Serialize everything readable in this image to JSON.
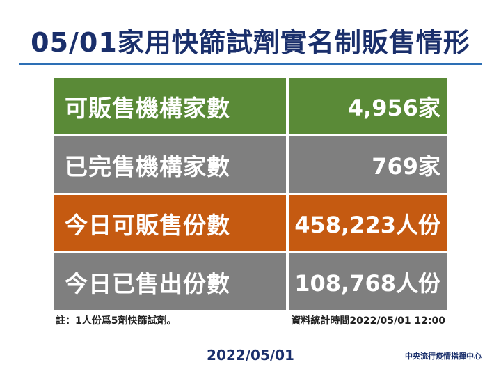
{
  "title": "05/01家用快篩試劑實名制販售情形",
  "rows": [
    {
      "label": "可販售機構家數",
      "value": "4,956家",
      "color": "#5a8a37"
    },
    {
      "label": "已完售機構家數",
      "value": "769家",
      "color": "#7f7f7f"
    },
    {
      "label": "今日可販售份數",
      "value": "458,223人份",
      "color": "#c55a11"
    },
    {
      "label": "今日已售出份數",
      "value": "108,768人份",
      "color": "#7f7f7f"
    }
  ],
  "notes": {
    "left": "註：1人份爲5劑快篩試劑。",
    "right": "資料統計時間2022/05/01  12:00"
  },
  "footer": {
    "date": "2022/05/01",
    "organization": "中央流行疫情指揮中心"
  },
  "colors": {
    "title": "#1a2f6b",
    "rule": "#2d6fb5",
    "green": "#5a8a37",
    "gray": "#7f7f7f",
    "orange": "#c55a11"
  }
}
